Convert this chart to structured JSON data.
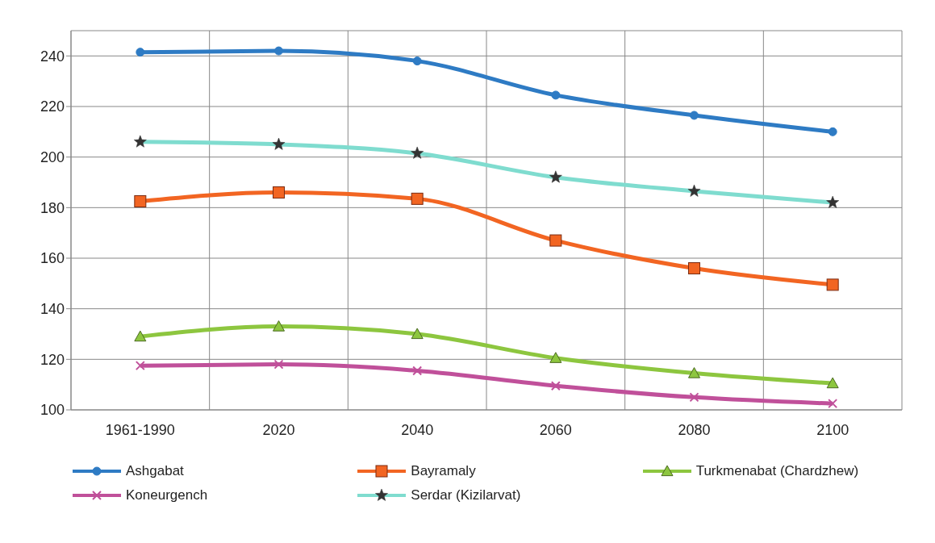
{
  "chart_data": {
    "type": "line",
    "categories": [
      "1961-1990",
      "2020",
      "2040",
      "2060",
      "2080",
      "2100"
    ],
    "series": [
      {
        "name": "Ashgabat",
        "color": "#2e7bc4",
        "marker": "circle",
        "values": [
          241.5,
          242,
          238,
          224.5,
          216.5,
          210
        ]
      },
      {
        "name": "Bayramaly",
        "color": "#f26522",
        "marker": "square",
        "values": [
          182.5,
          186,
          183.5,
          167,
          156,
          149.5
        ]
      },
      {
        "name": "Turkmenabat (Chardzhew)",
        "color": "#8dc63f",
        "marker": "triangle",
        "values": [
          129,
          133,
          130,
          120.5,
          114.5,
          110.5
        ]
      },
      {
        "name": "Koneurgench",
        "color": "#c0509a",
        "marker": "cross",
        "values": [
          117.5,
          118,
          115.5,
          109.5,
          105,
          102.5
        ]
      },
      {
        "name": "Serdar (Kizilarvat)",
        "color": "#7fdccf",
        "marker": "star",
        "values": [
          206,
          205,
          201.5,
          192,
          186.5,
          182
        ]
      }
    ],
    "ylim": [
      100,
      250
    ],
    "yticks": [
      100,
      120,
      140,
      160,
      180,
      200,
      220,
      240
    ],
    "grid": true,
    "legend": "bottom"
  }
}
